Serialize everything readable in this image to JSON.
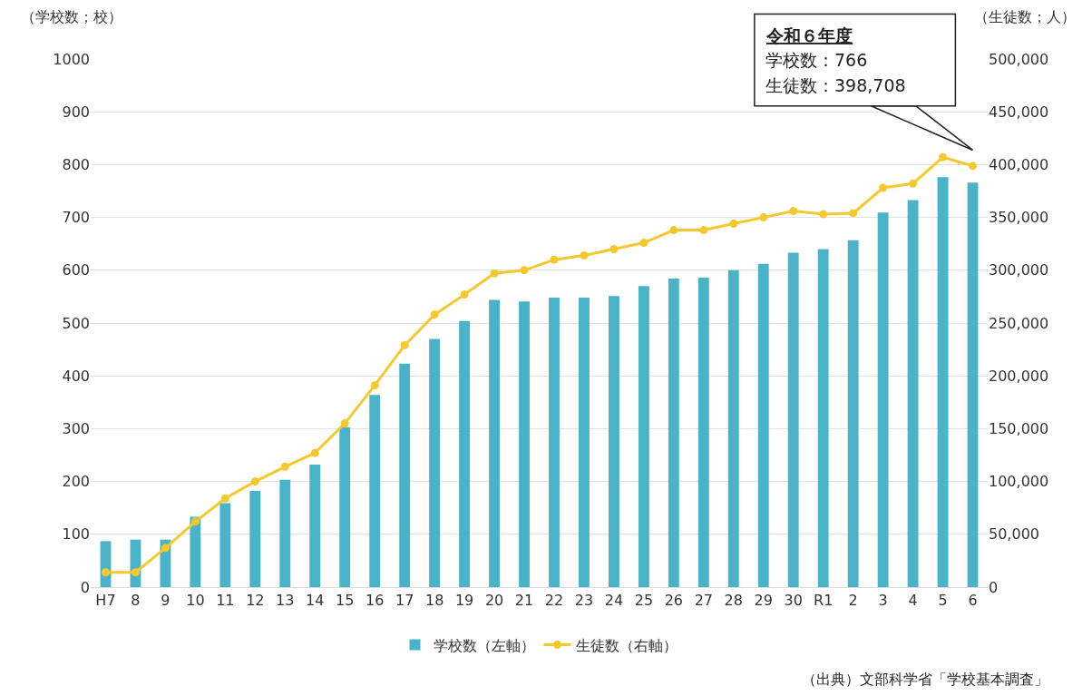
{
  "chart_data": {
    "type": "bar",
    "ylabel": "（学校数；校）",
    "y2label": "（生徒数；人）",
    "categories": [
      "H7",
      "8",
      "9",
      "10",
      "11",
      "12",
      "13",
      "14",
      "15",
      "16",
      "17",
      "18",
      "19",
      "20",
      "21",
      "22",
      "23",
      "24",
      "25",
      "26",
      "27",
      "28",
      "29",
      "30",
      "R1",
      "2",
      "3",
      "4",
      "5",
      "6"
    ],
    "series": [
      {
        "name": "学校数（左軸）",
        "color": "#4bb3c8",
        "values": [
          87,
          90,
          90,
          133,
          159,
          182,
          203,
          232,
          303,
          364,
          423,
          470,
          504,
          544,
          541,
          548,
          548,
          551,
          570,
          584,
          586,
          600,
          612,
          633,
          640,
          657,
          709,
          733,
          776,
          766
        ]
      },
      {
        "name": "生徒数（右軸）",
        "type": "line",
        "axis": "y2",
        "color": "#f5c92e",
        "marker": "circle",
        "values": [
          14000,
          14000,
          37000,
          62000,
          84000,
          100000,
          114000,
          127000,
          155000,
          191000,
          229000,
          258000,
          277000,
          297000,
          300000,
          310000,
          314000,
          320000,
          326000,
          338000,
          338000,
          344000,
          350000,
          356000,
          353000,
          354000,
          378000,
          382000,
          407000,
          398708
        ]
      }
    ],
    "ylim": [
      0,
      1000
    ],
    "yticks": [
      0,
      100,
      200,
      300,
      400,
      500,
      600,
      700,
      800,
      900,
      1000
    ],
    "y2lim": [
      0,
      500000
    ],
    "y2ticks": [
      0,
      {
        "value": 50000,
        "label": "50,000"
      },
      {
        "value": 100000,
        "label": "100,000"
      },
      {
        "value": 150000,
        "label": "150,000"
      },
      {
        "value": 200000,
        "label": "200,000"
      },
      {
        "value": 250000,
        "label": "250,000"
      },
      {
        "value": 300000,
        "label": "300,000"
      },
      {
        "value": 350000,
        "label": "350,000"
      },
      {
        "value": 400000,
        "label": "400,000"
      },
      {
        "value": 450000,
        "label": "450,000"
      },
      {
        "value": 500000,
        "label": "500,000"
      }
    ],
    "grid": "y",
    "legend": "bottom",
    "annotations": [
      "令和６年度",
      "学校数：766",
      "生徒数：398,708",
      "（出典）文部科学省「学校基本調査」"
    ]
  }
}
